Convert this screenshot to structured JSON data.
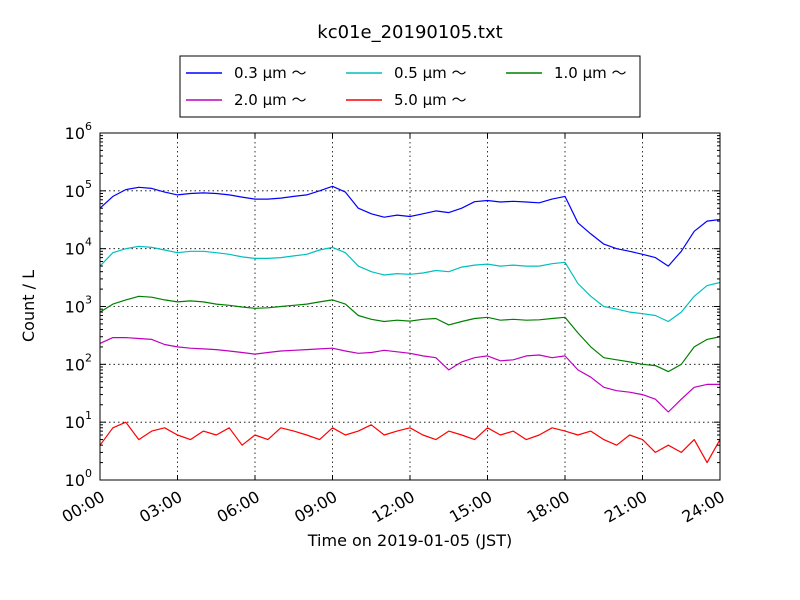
{
  "chart_data": {
    "type": "line",
    "title": "kc01e_20190105.txt",
    "xlabel": "Time on 2019-01-05 (JST)",
    "ylabel": "Count / L",
    "xlim": [
      "00:00",
      "24:00"
    ],
    "ylim": [
      1,
      1000000
    ],
    "yscale": "log",
    "grid": true,
    "legend_position": "top-center",
    "x_ticks": [
      "00:00",
      "03:00",
      "06:00",
      "09:00",
      "12:00",
      "15:00",
      "18:00",
      "21:00",
      "24:00"
    ],
    "y_ticks": [
      {
        "base": "10",
        "exp": "0"
      },
      {
        "base": "10",
        "exp": "1"
      },
      {
        "base": "10",
        "exp": "2"
      },
      {
        "base": "10",
        "exp": "3"
      },
      {
        "base": "10",
        "exp": "4"
      },
      {
        "base": "10",
        "exp": "5"
      },
      {
        "base": "10",
        "exp": "6"
      }
    ],
    "x_hours": [
      0,
      0.5,
      1,
      1.5,
      2,
      2.5,
      3,
      3.5,
      4,
      4.5,
      5,
      5.5,
      6,
      6.5,
      7,
      7.5,
      8,
      8.5,
      9,
      9.5,
      10,
      10.5,
      11,
      11.5,
      12,
      12.5,
      13,
      13.5,
      14,
      14.5,
      15,
      15.5,
      16,
      16.5,
      17,
      17.5,
      18,
      18.5,
      19,
      19.5,
      20,
      20.5,
      21,
      21.5,
      22,
      22.5,
      23,
      23.5,
      24
    ],
    "series": [
      {
        "name": "0.3 μm ～",
        "color": "#0000ff",
        "values": [
          50000,
          80000,
          105000,
          115000,
          110000,
          95000,
          85000,
          90000,
          92000,
          90000,
          85000,
          78000,
          72000,
          72000,
          75000,
          80000,
          85000,
          100000,
          120000,
          95000,
          50000,
          40000,
          35000,
          38000,
          36000,
          40000,
          45000,
          42000,
          50000,
          65000,
          68000,
          64000,
          66000,
          64000,
          62000,
          72000,
          80000,
          28000,
          18000,
          12000,
          10000,
          9000,
          8000,
          7000,
          5000,
          9000,
          20000,
          30000,
          32000
        ]
      },
      {
        "name": "0.5 μm ～",
        "color": "#00bfbf",
        "values": [
          5000,
          8500,
          10000,
          11000,
          10500,
          9500,
          8500,
          9000,
          9000,
          8500,
          8000,
          7200,
          6800,
          6800,
          7000,
          7500,
          8000,
          9500,
          10500,
          8500,
          5000,
          4000,
          3500,
          3700,
          3600,
          3800,
          4200,
          4000,
          4800,
          5200,
          5400,
          5000,
          5200,
          5000,
          5000,
          5500,
          5800,
          2500,
          1500,
          1000,
          900,
          800,
          750,
          700,
          550,
          800,
          1500,
          2300,
          2600
        ]
      },
      {
        "name": "1.0 μm ～",
        "color": "#008000",
        "values": [
          800,
          1100,
          1300,
          1500,
          1450,
          1300,
          1200,
          1250,
          1200,
          1100,
          1050,
          980,
          930,
          950,
          1000,
          1050,
          1100,
          1200,
          1300,
          1100,
          700,
          600,
          550,
          580,
          560,
          600,
          620,
          480,
          550,
          620,
          650,
          580,
          600,
          580,
          590,
          620,
          650,
          350,
          200,
          130,
          120,
          110,
          100,
          95,
          75,
          100,
          200,
          270,
          300
        ]
      },
      {
        "name": "2.0 μm ～",
        "color": "#bf00bf",
        "values": [
          230,
          290,
          290,
          280,
          270,
          220,
          200,
          190,
          185,
          180,
          170,
          160,
          150,
          160,
          170,
          175,
          180,
          185,
          190,
          170,
          155,
          160,
          175,
          165,
          155,
          140,
          130,
          80,
          110,
          130,
          140,
          115,
          120,
          140,
          145,
          130,
          140,
          80,
          60,
          40,
          35,
          33,
          30,
          25,
          15,
          25,
          40,
          45,
          45
        ]
      },
      {
        "name": "5.0 μm ～",
        "color": "#ff0000",
        "values": [
          4,
          8,
          10,
          5,
          7,
          8,
          6,
          5,
          7,
          6,
          8,
          4,
          6,
          5,
          8,
          7,
          6,
          5,
          8,
          6,
          7,
          9,
          6,
          7,
          8,
          6,
          5,
          7,
          6,
          5,
          8,
          6,
          7,
          5,
          6,
          8,
          7,
          6,
          7,
          5,
          4,
          6,
          5,
          3,
          4,
          3,
          5,
          2,
          5
        ]
      }
    ]
  }
}
